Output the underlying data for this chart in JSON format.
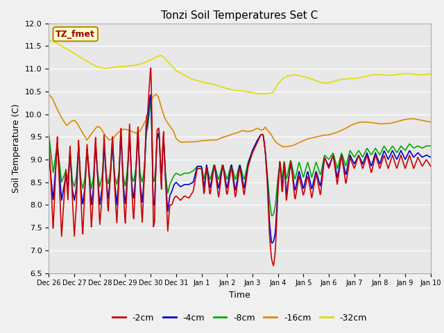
{
  "title": "Tonzi Soil Temperatures Set C",
  "xlabel": "Time",
  "ylabel": "Soil Temperature (C)",
  "ylim": [
    6.5,
    12.0
  ],
  "yticks": [
    6.5,
    7.0,
    7.5,
    8.0,
    8.5,
    9.0,
    9.5,
    10.0,
    10.5,
    11.0,
    11.5,
    12.0
  ],
  "xtick_labels": [
    "Dec 26",
    "Dec 27",
    "Dec 28",
    "Dec 29",
    "Dec 30",
    "Dec 31",
    "Jan 1",
    "Jan 2",
    "Jan 3",
    "Jan 4",
    "Jan 5",
    "Jan 6",
    "Jan 7",
    "Jan 8",
    "Jan 9",
    "Jan 10"
  ],
  "annotation_text": "TZ_fmet",
  "annotation_color": "#990000",
  "annotation_bg": "#ffffcc",
  "annotation_border": "#bb8800",
  "legend_labels": [
    "-2cm",
    "-4cm",
    "-8cm",
    "-16cm",
    "-32cm"
  ],
  "colors": {
    "-2cm": "#cc0000",
    "-4cm": "#0000cc",
    "-8cm": "#00aa00",
    "-16cm": "#dd8800",
    "-32cm": "#dddd00"
  },
  "fig_bg": "#f0f0f0",
  "plot_bg": "#e8e8e8",
  "grid_color": "#ffffff",
  "linewidth": 1.2,
  "n_days": 15
}
